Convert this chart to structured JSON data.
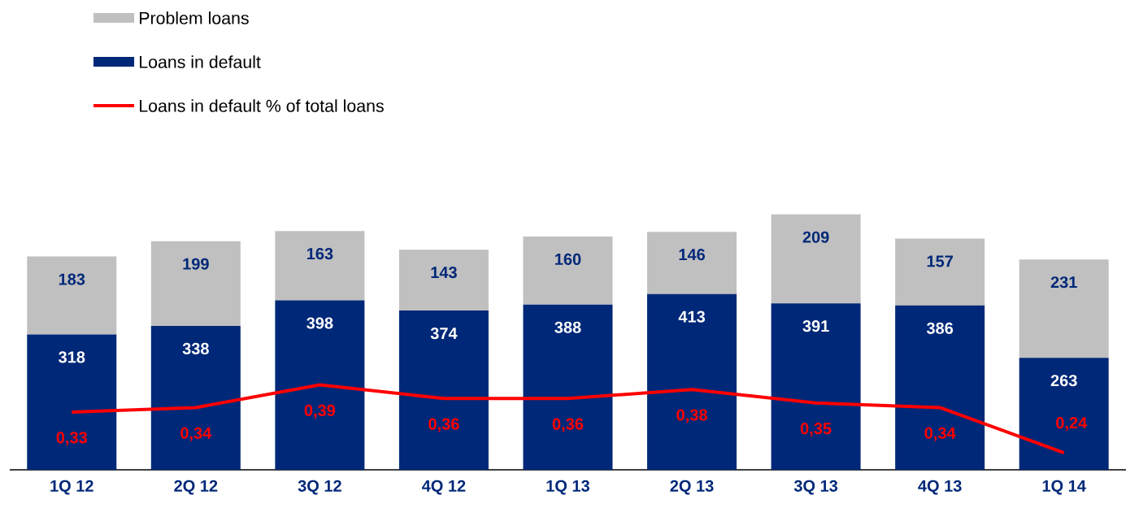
{
  "chart_data": {
    "type": "bar",
    "categories": [
      "1Q 12",
      "2Q 12",
      "3Q 12",
      "4Q 12",
      "1Q 13",
      "2Q 13",
      "3Q 13",
      "4Q 13",
      "1Q 14"
    ],
    "stacked": true,
    "data_labels": true,
    "legend": "top left",
    "tick_labels": "x",
    "series": [
      {
        "name": "Loans in default",
        "color": "#002878",
        "values": [
          318,
          338,
          398,
          374,
          388,
          413,
          391,
          386,
          263
        ]
      },
      {
        "name": "Problem loans",
        "color": "#c0c0c0",
        "values": [
          183,
          199,
          163,
          143,
          160,
          146,
          209,
          157,
          231
        ]
      },
      {
        "name": "Loans in default % of total loans",
        "type": "line",
        "axis": "y2",
        "color": "#ff0000",
        "values": [
          0.33,
          0.34,
          0.39,
          0.36,
          0.36,
          0.38,
          0.35,
          0.34,
          0.24
        ],
        "value_labels": [
          "0,33",
          "0,34",
          "0,39",
          "0,36",
          "0,36",
          "0,38",
          "0,35",
          "0,34",
          "0,24"
        ]
      }
    ]
  }
}
